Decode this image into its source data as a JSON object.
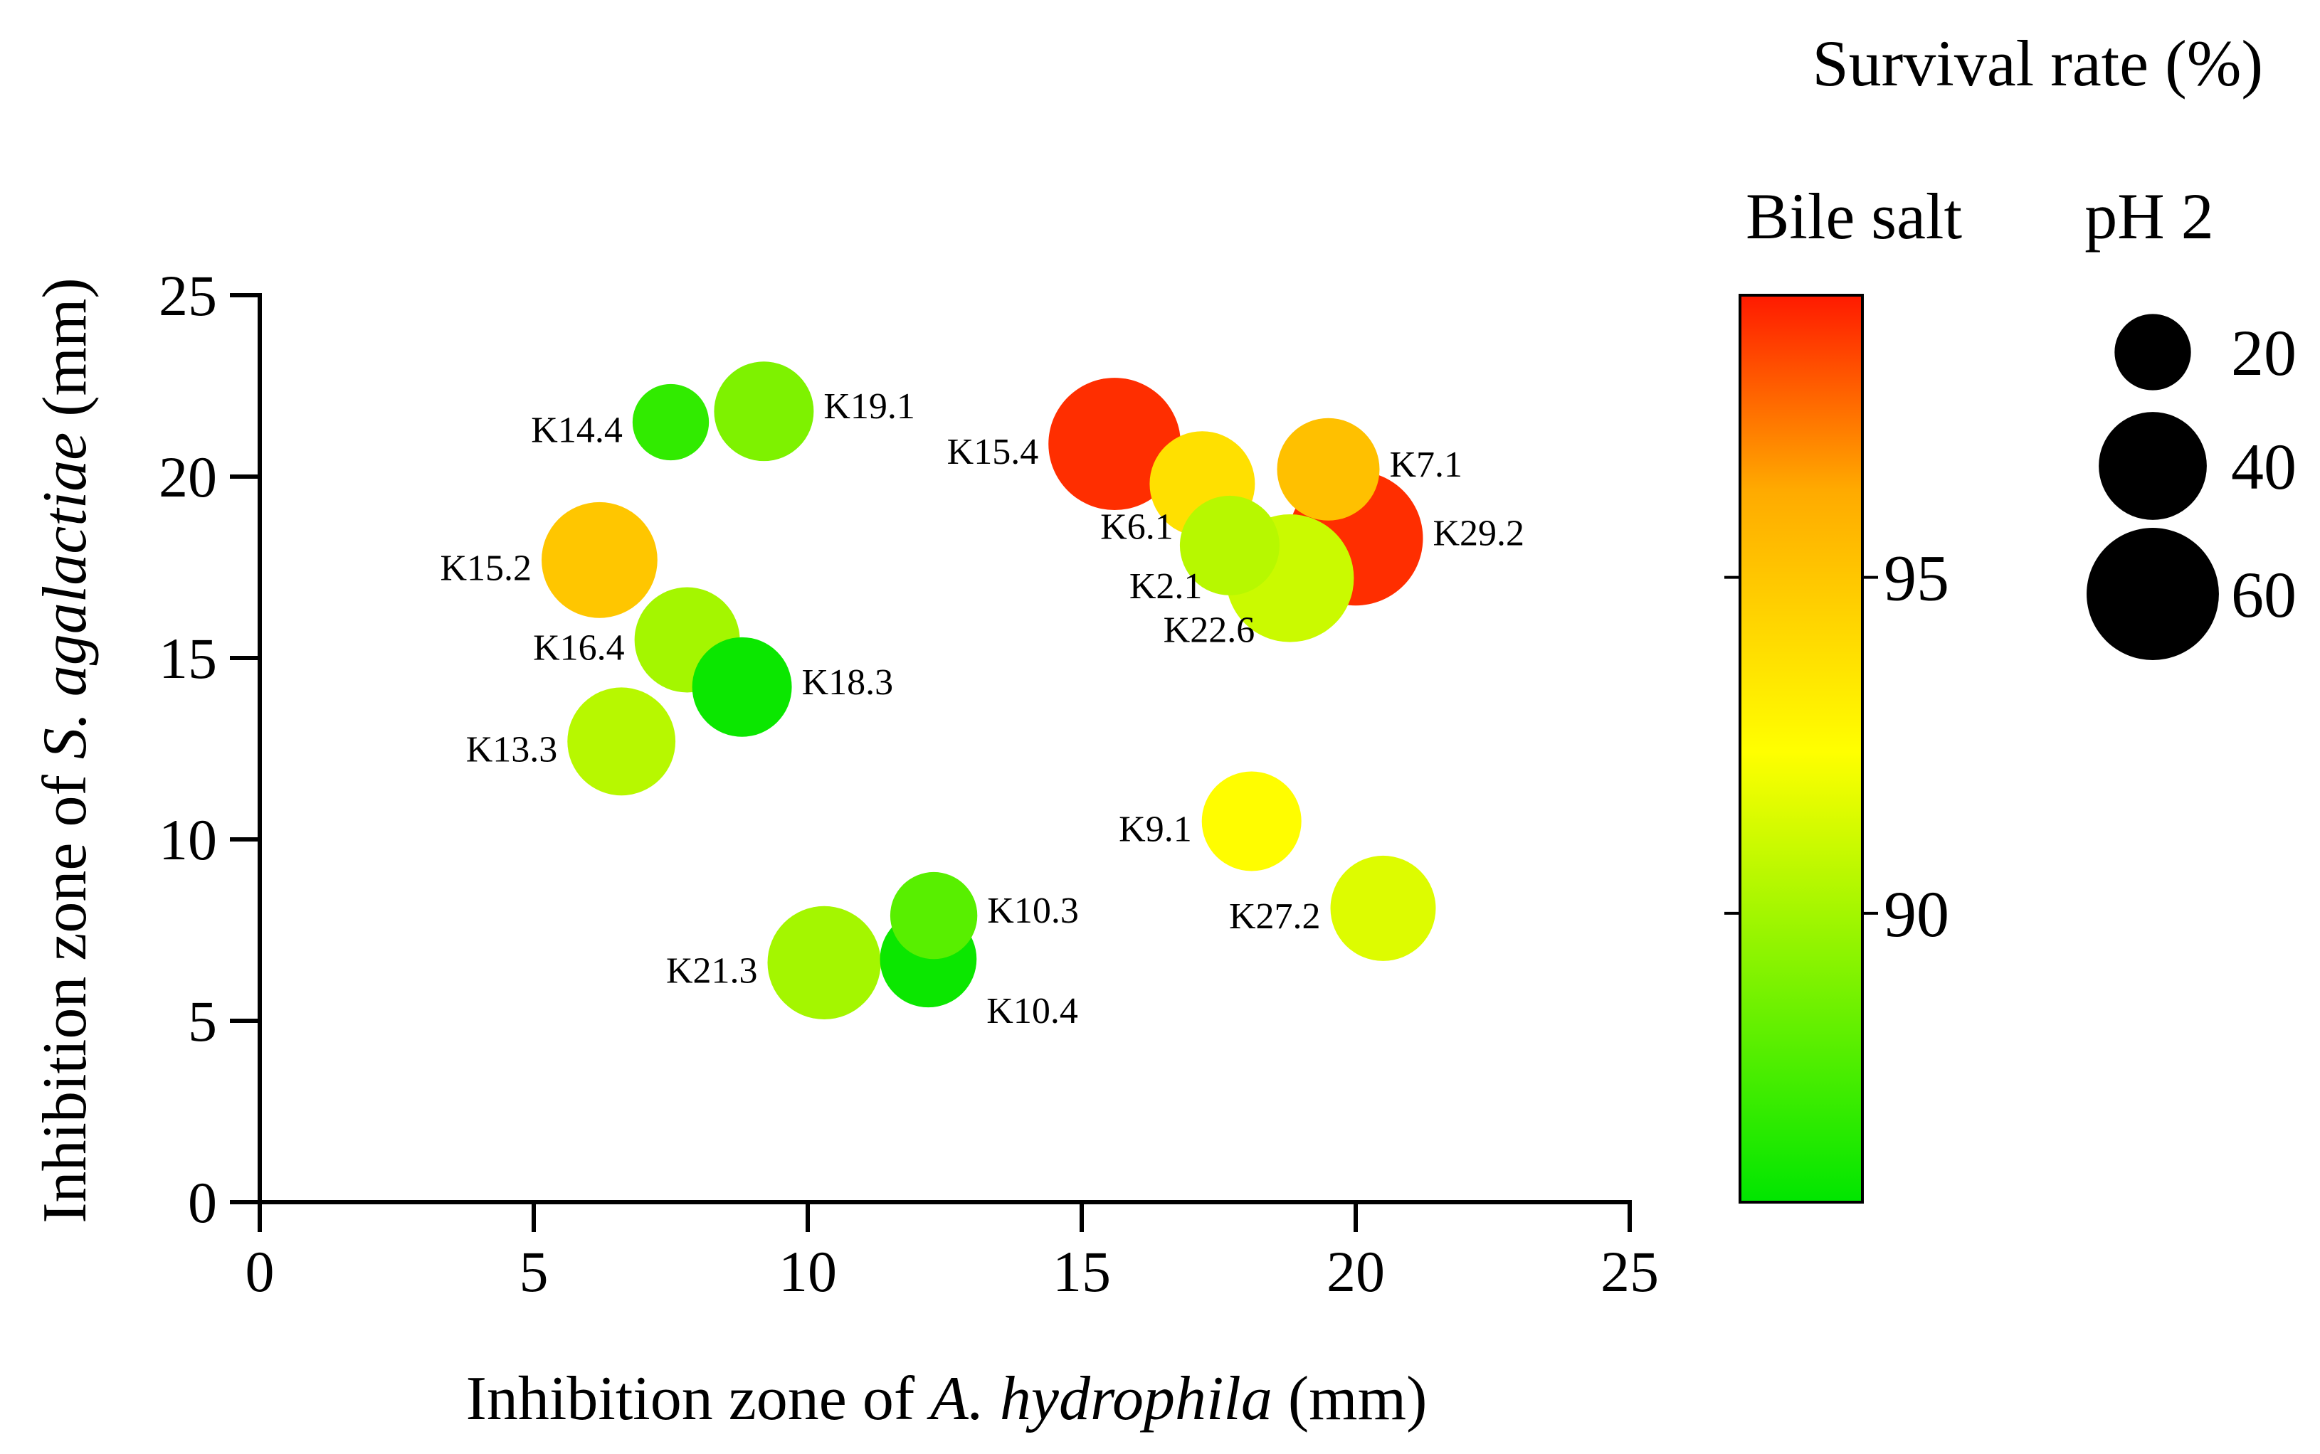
{
  "chart_data": {
    "type": "scatter",
    "title": "",
    "xlabel": {
      "prefix": "Inhibition zone of ",
      "italic": "A. hydrophila",
      "suffix": " (mm)"
    },
    "ylabel": {
      "prefix": "Inhibition zone of ",
      "italic": "S. agalactiae",
      "suffix": " (mm)"
    },
    "xlim": [
      0,
      25
    ],
    "ylim": [
      0,
      25
    ],
    "xticks": [
      0,
      5,
      10,
      15,
      20,
      25
    ],
    "yticks": [
      0,
      5,
      10,
      15,
      20,
      25
    ],
    "color_encoding": {
      "title": "Bile salt",
      "range": [
        85.7,
        99.2
      ],
      "ticks": [
        90,
        95
      ],
      "low_color": "#00e600",
      "mid_color": "#ffff00",
      "high_color": "#ff1a00",
      "mid_value": 92.4,
      "upper_value": 96.3,
      "upper_color": "#ffaa00"
    },
    "size_encoding": {
      "title": "pH 2",
      "values": [
        20,
        40,
        60
      ]
    },
    "legend_header": "Survival rate (%)",
    "points": [
      {
        "label": "K14.4",
        "x": 7.5,
        "y": 21.5,
        "ph2": 20,
        "bile": 87.0,
        "label_pos": "left"
      },
      {
        "label": "K19.1",
        "x": 9.2,
        "y": 21.8,
        "ph2": 34,
        "bile": 89.0,
        "label_pos": "right"
      },
      {
        "label": "K15.4",
        "x": 15.6,
        "y": 20.9,
        "ph2": 60,
        "bile": 98.8,
        "label_pos": "left"
      },
      {
        "label": "K7.1",
        "x": 19.5,
        "y": 20.2,
        "ph2": 36,
        "bile": 95.3,
        "label_pos": "right"
      },
      {
        "label": "K6.1",
        "x": 17.2,
        "y": 19.8,
        "ph2": 38,
        "bile": 93.8,
        "label_pos": "below-left"
      },
      {
        "label": "K15.2",
        "x": 6.2,
        "y": 17.7,
        "ph2": 46,
        "bile": 95.0,
        "label_pos": "left"
      },
      {
        "label": "K2.1",
        "x": 17.7,
        "y": 18.1,
        "ph2": 34,
        "bile": 90.5,
        "label_pos": "below-left"
      },
      {
        "label": "K29.2",
        "x": 20.0,
        "y": 18.3,
        "ph2": 62,
        "bile": 98.8,
        "label_pos": "right"
      },
      {
        "label": "K22.6",
        "x": 18.8,
        "y": 17.2,
        "ph2": 56,
        "bile": 91.0,
        "label_pos": "below-left"
      },
      {
        "label": "K16.4",
        "x": 7.8,
        "y": 15.5,
        "ph2": 38,
        "bile": 90.0,
        "label_pos": "left"
      },
      {
        "label": "K18.3",
        "x": 8.8,
        "y": 14.2,
        "ph2": 34,
        "bile": 86.0,
        "label_pos": "right"
      },
      {
        "label": "K13.3",
        "x": 6.6,
        "y": 12.7,
        "ph2": 40,
        "bile": 90.5,
        "label_pos": "left"
      },
      {
        "label": "K9.1",
        "x": 18.1,
        "y": 10.5,
        "ph2": 34,
        "bile": 92.5,
        "label_pos": "left"
      },
      {
        "label": "K27.2",
        "x": 20.5,
        "y": 8.1,
        "ph2": 38,
        "bile": 91.5,
        "label_pos": "left"
      },
      {
        "label": "K10.3",
        "x": 12.3,
        "y": 7.9,
        "ph2": 26,
        "bile": 88.0,
        "label_pos": "right"
      },
      {
        "label": "K21.3",
        "x": 10.3,
        "y": 6.6,
        "ph2": 44,
        "bile": 90.0,
        "label_pos": "left"
      },
      {
        "label": "K10.4",
        "x": 12.2,
        "y": 6.7,
        "ph2": 32,
        "bile": 86.0,
        "label_pos": "below-right"
      }
    ]
  }
}
